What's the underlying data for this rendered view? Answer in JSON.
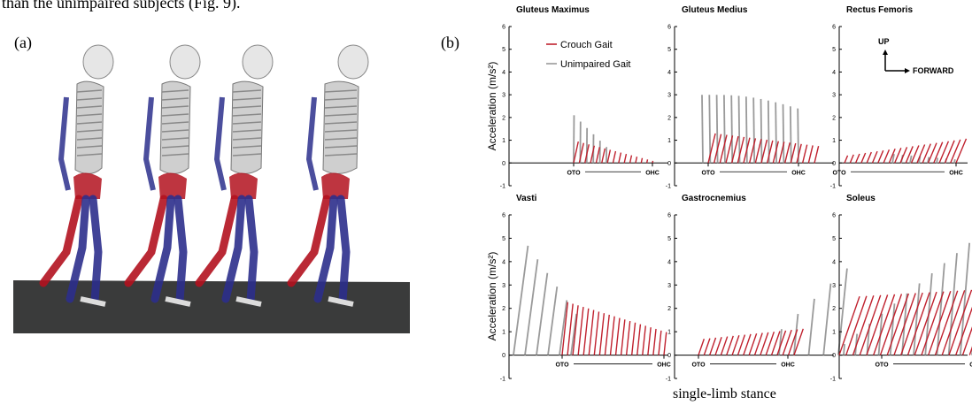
{
  "page": {
    "top_text": "than the unimpaired subjects (Fig. 9).",
    "label_a": "(a)",
    "label_b": "(b)",
    "bottom_caption": "single-limb stance"
  },
  "colors": {
    "crouch": "#c0212e",
    "unimpaired": "#9a9a9a",
    "muscle_red": "#b3121f",
    "muscle_blue": "#2c2f8c",
    "floor": "#3a3b3b",
    "bone": "#e6e6e6"
  },
  "legend": {
    "crouch": "Crouch Gait",
    "unimpaired": "Unimpaired Gait"
  },
  "direction": {
    "up": "UP",
    "forward": "FORWARD"
  },
  "ylabel": "Acceleration (m/s²)",
  "ticks": [
    "-1",
    "0",
    "1",
    "2",
    "3",
    "4",
    "5",
    "6"
  ],
  "event_labels": {
    "start": "OTO",
    "end": "OHC"
  },
  "chart_data": [
    {
      "type": "line",
      "title": "Gluteus Maximus",
      "ylim": [
        -1,
        6
      ],
      "crouch_peak": 1.0,
      "unimpaired_peak": 2.1
    },
    {
      "type": "line",
      "title": "Gluteus Medius",
      "ylim": [
        -1,
        6
      ],
      "crouch_peak": 1.4,
      "unimpaired_peak": 3.2
    },
    {
      "type": "line",
      "title": "Rectus Femoris",
      "ylim": [
        -1,
        6
      ],
      "crouch_peak": 1.3,
      "unimpaired_peak": 0.5
    },
    {
      "type": "line",
      "title": "Vasti",
      "ylim": [
        -1,
        6
      ],
      "crouch_peak": 2.3,
      "unimpaired_peak": 5.3
    },
    {
      "type": "line",
      "title": "Gastrocnemius",
      "ylim": [
        -1,
        6
      ],
      "crouch_peak": 1.3,
      "unimpaired_peak": 4.0
    },
    {
      "type": "line",
      "title": "Soleus",
      "ylim": [
        -1,
        6
      ],
      "crouch_peak": 3.3,
      "unimpaired_peak": 5.5
    }
  ]
}
